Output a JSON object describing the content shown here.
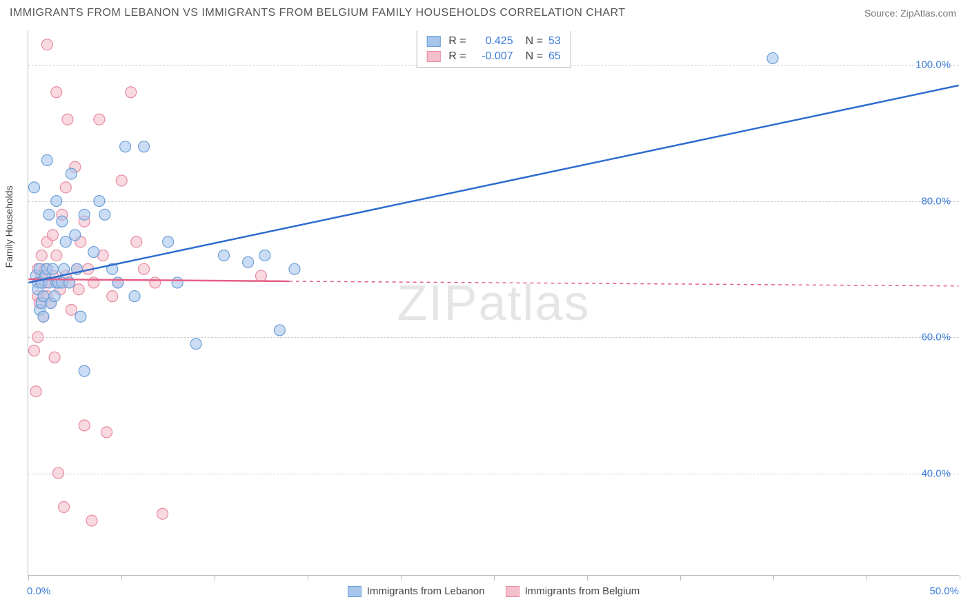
{
  "header": {
    "title": "IMMIGRANTS FROM LEBANON VS IMMIGRANTS FROM BELGIUM FAMILY HOUSEHOLDS CORRELATION CHART",
    "source": "Source: ZipAtlas.com"
  },
  "watermark": {
    "part1": "ZIP",
    "part2": "atlas"
  },
  "chart": {
    "type": "scatter",
    "ylabel": "Family Households",
    "xlim": [
      0,
      50
    ],
    "ylim": [
      25,
      105
    ],
    "x_ticks": [
      0,
      5,
      10,
      15,
      20,
      25,
      30,
      35,
      40,
      45,
      50
    ],
    "y_gridlines": [
      40,
      60,
      80,
      100
    ],
    "y_tick_labels": [
      "40.0%",
      "60.0%",
      "80.0%",
      "100.0%"
    ],
    "x_min_label": "0.0%",
    "x_max_label": "50.0%",
    "background_color": "#ffffff",
    "grid_color": "#cccccc",
    "axis_color": "#bbbbbb",
    "tick_label_color": "#3b7dd8",
    "marker_radius": 8,
    "marker_stroke_width": 1.2,
    "line_width": 2.5,
    "series": [
      {
        "name": "Immigrants from Lebanon",
        "color_fill": "#a8c6ec",
        "color_stroke": "#6a9fd8",
        "line_color": "#2e6cd0",
        "r": "0.425",
        "n": "53",
        "regression": {
          "x1": 0,
          "y1": 68,
          "x2": 50,
          "y2": 97,
          "dashed_from": 50
        },
        "points": [
          [
            0.3,
            82
          ],
          [
            0.4,
            69
          ],
          [
            0.5,
            68
          ],
          [
            0.5,
            67
          ],
          [
            0.6,
            64
          ],
          [
            0.6,
            70
          ],
          [
            0.7,
            65
          ],
          [
            0.7,
            68
          ],
          [
            0.8,
            63
          ],
          [
            0.8,
            66
          ],
          [
            0.9,
            69
          ],
          [
            1.0,
            70
          ],
          [
            1.0,
            86
          ],
          [
            1.1,
            78
          ],
          [
            1.1,
            68
          ],
          [
            1.2,
            65
          ],
          [
            1.3,
            70
          ],
          [
            1.4,
            66
          ],
          [
            1.5,
            68
          ],
          [
            1.5,
            80
          ],
          [
            1.6,
            68
          ],
          [
            1.8,
            77
          ],
          [
            1.8,
            68
          ],
          [
            1.9,
            70
          ],
          [
            2.0,
            74
          ],
          [
            2.2,
            68
          ],
          [
            2.3,
            84
          ],
          [
            2.5,
            75
          ],
          [
            2.6,
            70
          ],
          [
            2.8,
            63
          ],
          [
            3.0,
            55
          ],
          [
            3.0,
            78
          ],
          [
            3.5,
            72.5
          ],
          [
            3.8,
            80
          ],
          [
            4.1,
            78
          ],
          [
            4.5,
            70
          ],
          [
            4.8,
            68
          ],
          [
            5.2,
            88
          ],
          [
            5.7,
            66
          ],
          [
            6.2,
            88
          ],
          [
            7.5,
            74
          ],
          [
            8.0,
            68
          ],
          [
            9.0,
            59
          ],
          [
            10.5,
            72
          ],
          [
            11.8,
            71
          ],
          [
            12.7,
            72
          ],
          [
            13.5,
            61
          ],
          [
            14.3,
            70
          ],
          [
            40.0,
            101
          ]
        ]
      },
      {
        "name": "Immigrants from Belgium",
        "color_fill": "#f4c0cc",
        "color_stroke": "#e88aa3",
        "line_color": "#e65f85",
        "r": "-0.007",
        "n": "65",
        "regression": {
          "x1": 0,
          "y1": 68.5,
          "x2": 14,
          "y2": 68.2,
          "dashed_from": 14,
          "x3": 50,
          "y3": 67.5
        },
        "points": [
          [
            0.3,
            58
          ],
          [
            0.4,
            52
          ],
          [
            0.5,
            70
          ],
          [
            0.5,
            60
          ],
          [
            0.5,
            66
          ],
          [
            0.6,
            68
          ],
          [
            0.6,
            65
          ],
          [
            0.7,
            72
          ],
          [
            0.7,
            69
          ],
          [
            0.8,
            66
          ],
          [
            0.8,
            63
          ],
          [
            0.9,
            68
          ],
          [
            0.9,
            70
          ],
          [
            1.0,
            66
          ],
          [
            1.0,
            74
          ],
          [
            1.0,
            103
          ],
          [
            1.1,
            68
          ],
          [
            1.2,
            65
          ],
          [
            1.3,
            75
          ],
          [
            1.3,
            69
          ],
          [
            1.4,
            57
          ],
          [
            1.5,
            72
          ],
          [
            1.5,
            96
          ],
          [
            1.6,
            68
          ],
          [
            1.6,
            40
          ],
          [
            1.7,
            67
          ],
          [
            1.8,
            78
          ],
          [
            1.9,
            35
          ],
          [
            2.0,
            82
          ],
          [
            2.0,
            69
          ],
          [
            2.1,
            92
          ],
          [
            2.2,
            68
          ],
          [
            2.3,
            64
          ],
          [
            2.5,
            85
          ],
          [
            2.6,
            70
          ],
          [
            2.7,
            67
          ],
          [
            2.8,
            74
          ],
          [
            3.0,
            47
          ],
          [
            3.0,
            77
          ],
          [
            3.2,
            70
          ],
          [
            3.4,
            33
          ],
          [
            3.5,
            68
          ],
          [
            3.8,
            92
          ],
          [
            4.0,
            72
          ],
          [
            4.2,
            46
          ],
          [
            4.5,
            66
          ],
          [
            4.8,
            68
          ],
          [
            5.0,
            83
          ],
          [
            5.5,
            96
          ],
          [
            5.8,
            74
          ],
          [
            6.2,
            70
          ],
          [
            6.8,
            68
          ],
          [
            7.2,
            34
          ],
          [
            12.5,
            69
          ]
        ]
      }
    ],
    "legend_top": {
      "r_label": "R =",
      "n_label": "N ="
    },
    "legend_bottom": {
      "series1_label": "Immigrants from Lebanon",
      "series2_label": "Immigrants from Belgium"
    }
  }
}
